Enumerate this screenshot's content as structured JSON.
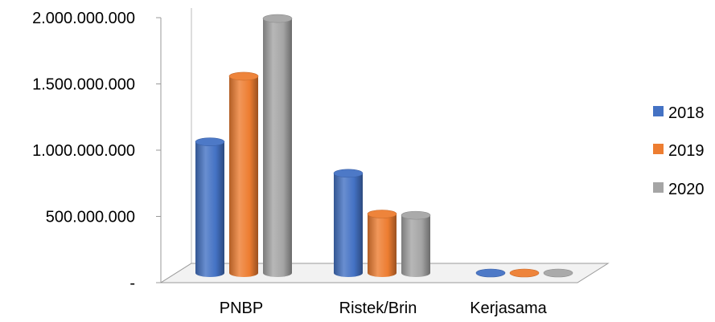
{
  "chart_data": {
    "type": "bar",
    "style": "3d-cylinder",
    "categories": [
      "PNBP",
      "Ristek/Brin",
      "Kerjasama"
    ],
    "series": [
      {
        "name": "2018",
        "color": "#4472C4",
        "values": [
          1000000000,
          760000000,
          0
        ]
      },
      {
        "name": "2019",
        "color": "#ED7D31",
        "values": [
          1500000000,
          450000000,
          0
        ]
      },
      {
        "name": "2020",
        "color": "#A5A5A5",
        "values": [
          1940000000,
          440000000,
          0
        ]
      }
    ],
    "y_ticks": [
      {
        "value": 0,
        "label": "-"
      },
      {
        "value": 500000000,
        "label": "500.000.000"
      },
      {
        "value": 1000000000,
        "label": "1.000.000.000"
      },
      {
        "value": 1500000000,
        "label": "1.500.000.000"
      },
      {
        "value": 2000000000,
        "label": "2.000.000.000"
      }
    ],
    "ylim": [
      0,
      2000000000
    ],
    "grid": false,
    "legend_position": "right"
  }
}
